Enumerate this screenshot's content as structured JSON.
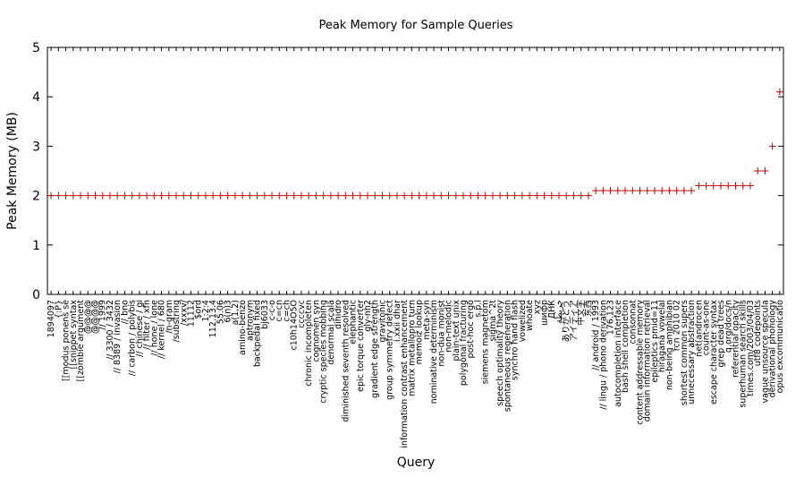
{
  "chart_data": {
    "type": "scatter",
    "title": "Peak Memory for Sample Queries",
    "xlabel": "Query",
    "ylabel": "Peak Memory (MB)",
    "ylim": [
      0,
      5
    ],
    "yticks": [
      "0",
      "1",
      "2",
      "3",
      "4",
      "5"
    ],
    "grid": false,
    "legend": "none",
    "marker_color": "#cc0000",
    "marker": "plus",
    "categories": [
      "1894097",
      "{:P}",
      "[[modus ponens se",
      "[[snippet syntax",
      "[[zombie argument",
      "@@@@",
      "@@@@",
      "// 1999",
      "// 3300 / 3432",
      "// 8389 / invasion",
      "// bno",
      "// carbon / polybis",
      "// chinese / gi",
      "// filter / xfn",
      "// hone / lone",
      "// kernel / 680",
      "/n-gram",
      "/substring",
      "/xxxv/",
      "11112",
      "$ord",
      "1:2:4",
      "112.13.4",
      "55.06",
      "6(n)3",
      "a(1,2)",
      "amino-benzo",
      "aptronym",
      "backpedal fixed",
      "bj6033",
      "c-c-o",
      "c=cn",
      "c=ch",
      "c10h14O5O",
      "ccccvc",
      "chronic incompleten",
      "cognomen syn",
      "cryptic species mobbing",
      "denormal scala",
      "dihidro",
      "diminished seventh resolved",
      "elephantic",
      "epic torque converter",
      "gly-nh2",
      "gradient edge strength",
      "gravitonic",
      "group symmetry defect",
      "i.xxii dhar",
      "information contrast enhancement",
      "matrix metallopro turn",
      "memoiz lookup",
      "meta-syn",
      "nominative determinism",
      "non-dua monist",
      "non-melodic",
      "plain-text unix",
      "polygonal fracturing",
      "post-hoc ergo",
      "s.p.l",
      "siemens magnetom",
      "sigma^2t",
      "speech optimality theory",
      "spontaneous regeneration",
      "synchro hand flash",
      "vowelized",
      "whoate",
      "xyz",
      "шифр",
      "ДНК",
      "خريطة",
      "ありがとう",
      "アイディア",
      "中文字",
      "东西",
      "// android / 1993",
      "// lingu / phono derivation",
      "176.123",
      "autocompletion interface",
      "bash shell completion",
      "consonnat",
      "content addressable memory",
      "domain information retrieval",
      "epileptics pmid=11",
      "hiragana vowelal",
      "non-being amphibian",
      "rcn 2010 02",
      "shortest common supers",
      "unnecessary abstraction",
      "net(androcen",
      "count-as-one",
      "escape character syntax",
      "grep dead trees",
      "q.org/docs/n",
      "referential opacity",
      "superhuman search skills",
      "times.com/2003/04/03",
      "utf8 codepoints",
      "vague unsource specula",
      "derivational phonology",
      "opus excommunicatio"
    ],
    "values": [
      2,
      2,
      2,
      2,
      2,
      2,
      2,
      2,
      2,
      2,
      2,
      2,
      2,
      2,
      2,
      2,
      2,
      2,
      2,
      2,
      2,
      2,
      2,
      2,
      2,
      2,
      2,
      2,
      2,
      2,
      2,
      2,
      2,
      2,
      2,
      2,
      2,
      2,
      2,
      2,
      2,
      2,
      2,
      2,
      2,
      2,
      2,
      2,
      2,
      2,
      2,
      2,
      2,
      2,
      2,
      2,
      2,
      2,
      2,
      2,
      2,
      2,
      2,
      2,
      2,
      2,
      2,
      2,
      2,
      2,
      2,
      2,
      2,
      2,
      2.1,
      2.1,
      2.1,
      2.1,
      2.1,
      2.1,
      2.1,
      2.1,
      2.1,
      2.1,
      2.1,
      2.1,
      2.1,
      2.1,
      2.2,
      2.2,
      2.2,
      2.2,
      2.2,
      2.2,
      2.2,
      2.2,
      2.5,
      2.5,
      3,
      4.1
    ]
  }
}
